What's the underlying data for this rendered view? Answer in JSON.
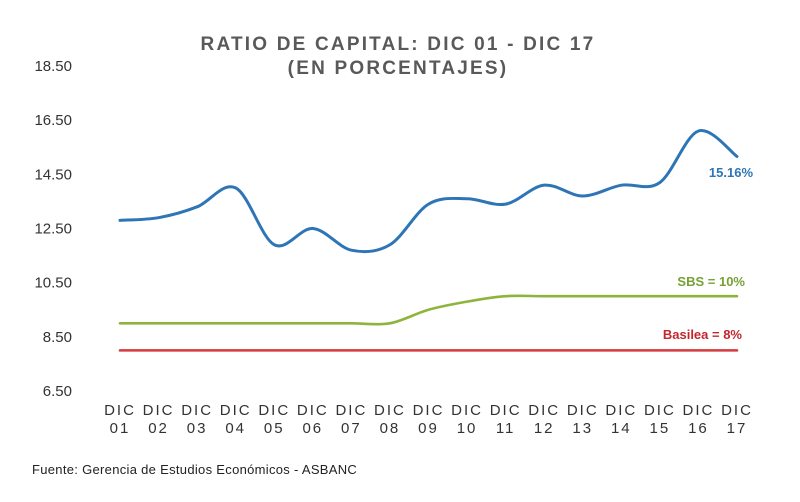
{
  "chart_data": {
    "type": "line",
    "title": "RATIO DE CAPITAL: DIC 01 - DIC 17",
    "subtitle": "(EN PORCENTAJES)",
    "xlabel": "",
    "ylabel": "",
    "ylim": [
      6.5,
      18.5
    ],
    "yticks": [
      "18.50",
      "16.50",
      "14.50",
      "12.50",
      "10.50",
      "8.50",
      "6.50"
    ],
    "ytick_values": [
      18.5,
      16.5,
      14.5,
      12.5,
      10.5,
      8.5,
      6.5
    ],
    "categories": [
      [
        "DIC",
        "01"
      ],
      [
        "DIC",
        "02"
      ],
      [
        "DIC",
        "03"
      ],
      [
        "DIC",
        "04"
      ],
      [
        "DIC",
        "05"
      ],
      [
        "DIC",
        "06"
      ],
      [
        "DIC",
        "07"
      ],
      [
        "DIC",
        "08"
      ],
      [
        "DIC",
        "09"
      ],
      [
        "DIC",
        "10"
      ],
      [
        "DIC",
        "11"
      ],
      [
        "DIC",
        "12"
      ],
      [
        "DIC",
        "13"
      ],
      [
        "DIC",
        "14"
      ],
      [
        "DIC",
        "15"
      ],
      [
        "DIC",
        "16"
      ],
      [
        "DIC",
        "17"
      ]
    ],
    "grid": false,
    "legend": "none",
    "series": [
      {
        "name": "",
        "color": "#2E75B6",
        "values": [
          12.8,
          12.9,
          13.3,
          14.0,
          11.9,
          12.5,
          11.7,
          11.9,
          13.4,
          13.6,
          13.4,
          14.1,
          13.7,
          14.1,
          14.2,
          16.1,
          15.16
        ],
        "end_label": "15.16%",
        "end_label_color": "#2E75B6"
      },
      {
        "name": "",
        "color": "#8DB53C",
        "values": [
          9.0,
          9.0,
          9.0,
          9.0,
          9.0,
          9.0,
          9.0,
          9.0,
          9.5,
          9.8,
          10.0,
          10.0,
          10.0,
          10.0,
          10.0,
          10.0,
          10.0
        ],
        "end_label": "SBS = 10%",
        "end_label_color": "#77A035"
      },
      {
        "name": "",
        "color": "#D6393E",
        "values": [
          8.0,
          8.0,
          8.0,
          8.0,
          8.0,
          8.0,
          8.0,
          8.0,
          8.0,
          8.0,
          8.0,
          8.0,
          8.0,
          8.0,
          8.0,
          8.0,
          8.0
        ],
        "end_label": "Basilea = 8%",
        "end_label_color": "#C4262E"
      }
    ]
  },
  "source": "Fuente: Gerencia de Estudios Económicos - ASBANC"
}
